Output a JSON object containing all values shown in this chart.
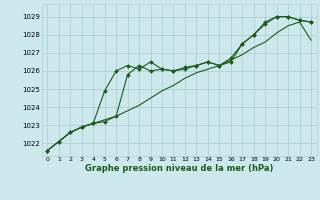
{
  "title": "Graphe pression niveau de la mer (hPa)",
  "bg_color": "#cce8ec",
  "grid_color": "#aed0d5",
  "line_color": "#1a5c1a",
  "marker_color": "#1a5c1a",
  "xlim": [
    -0.5,
    23.5
  ],
  "ylim": [
    1021.3,
    1029.7
  ],
  "yticks": [
    1022,
    1023,
    1024,
    1025,
    1026,
    1027,
    1028,
    1029
  ],
  "xticks": [
    0,
    1,
    2,
    3,
    4,
    5,
    6,
    7,
    8,
    9,
    10,
    11,
    12,
    13,
    14,
    15,
    16,
    17,
    18,
    19,
    20,
    21,
    22,
    23
  ],
  "series1_x": [
    0,
    1,
    2,
    3,
    4,
    5,
    6,
    7,
    8,
    9,
    10,
    11,
    12,
    13,
    14,
    15,
    16,
    17,
    18,
    19,
    20,
    21,
    22,
    23
  ],
  "series1_y": [
    1021.6,
    1022.1,
    1022.6,
    1022.9,
    1023.1,
    1023.3,
    1023.5,
    1023.8,
    1024.1,
    1024.5,
    1024.9,
    1025.2,
    1025.6,
    1025.9,
    1026.1,
    1026.3,
    1026.6,
    1026.9,
    1027.3,
    1027.6,
    1028.1,
    1028.5,
    1028.7,
    1027.7
  ],
  "series2_x": [
    0,
    1,
    2,
    3,
    4,
    5,
    6,
    7,
    8,
    9,
    10,
    11,
    12,
    13,
    14,
    15,
    16,
    17,
    18,
    19,
    20,
    21,
    22,
    23
  ],
  "series2_y": [
    1021.6,
    1022.1,
    1022.6,
    1022.9,
    1023.1,
    1023.2,
    1023.5,
    1025.8,
    1026.3,
    1026.0,
    1026.1,
    1026.0,
    1026.2,
    1026.3,
    1026.5,
    1026.3,
    1026.5,
    1027.5,
    1028.0,
    1028.6,
    1029.0,
    1029.0,
    1028.8,
    1028.7
  ],
  "series3_x": [
    0,
    1,
    2,
    3,
    4,
    5,
    6,
    7,
    8,
    9,
    10,
    11,
    12,
    13,
    14,
    15,
    16,
    17,
    18,
    19,
    20,
    21,
    22,
    23
  ],
  "series3_y": [
    1021.6,
    1022.1,
    1022.6,
    1022.9,
    1023.1,
    1024.9,
    1026.0,
    1026.3,
    1026.1,
    1026.5,
    1026.1,
    1026.0,
    1026.1,
    1026.3,
    1026.5,
    1026.3,
    1026.7,
    1027.5,
    1028.0,
    1028.7,
    1029.0,
    1029.0,
    1028.8,
    1028.7
  ]
}
